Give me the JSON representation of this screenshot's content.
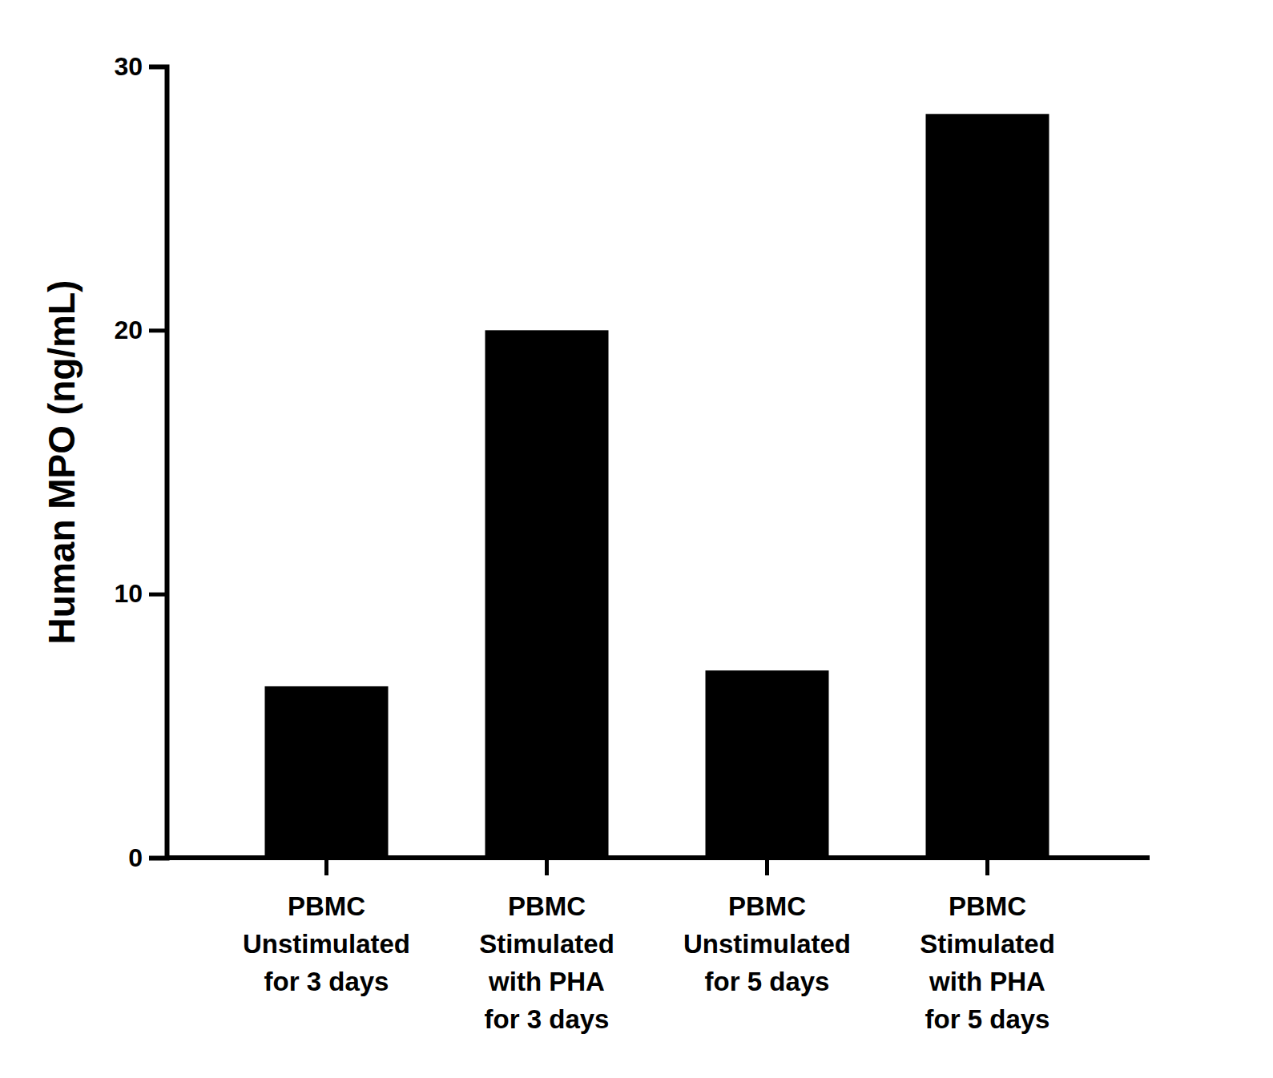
{
  "chart_data": {
    "type": "bar",
    "y_label": "Human MPO (ng/mL)",
    "categories": [
      "PBMC\nUnstimulated\nfor 3 days",
      "PBMC\nStimulated\nwith PHA\nfor 3 days",
      "PBMC\nUnstimulated\nfor 5 days",
      "PBMC\nStimulated\nwith PHA\nfor 5 days"
    ],
    "values": [
      6.5,
      20.0,
      7.1,
      28.2
    ],
    "color": "#000000",
    "ylim": [
      0,
      30
    ],
    "yticks": [
      0,
      10,
      20,
      30
    ],
    "grid": false
  }
}
